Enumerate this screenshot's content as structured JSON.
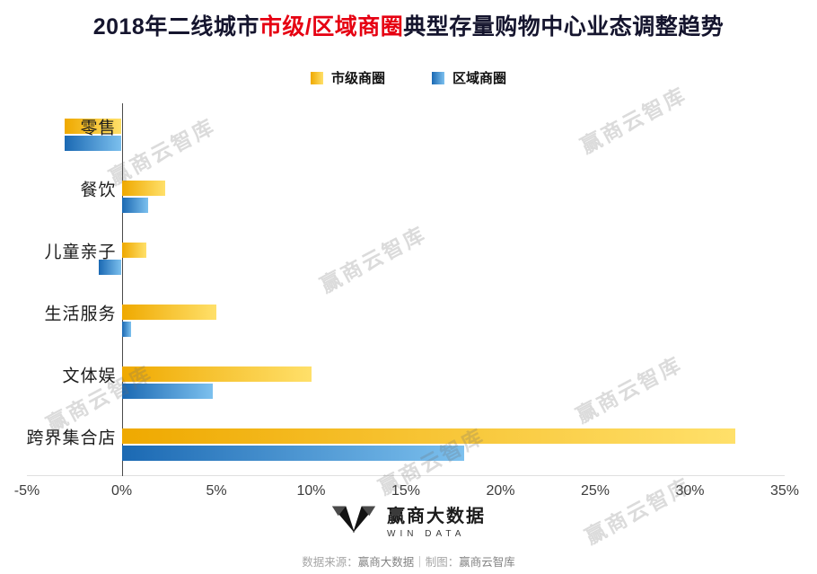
{
  "title": {
    "prefix": "2018年二线城市",
    "highlight": "市级/区域商圈",
    "suffix": "典型存量购物中心业态调整趋势"
  },
  "chart_data": {
    "type": "bar",
    "orientation": "horizontal",
    "title": "2018年二线城市市级/区域商圈典型存量购物中心业态调整趋势",
    "categories": [
      "零售",
      "餐饮",
      "儿童亲子",
      "生活服务",
      "文体娱",
      "跨界集合店"
    ],
    "series": [
      {
        "name": "市级商圈",
        "values": [
          -3,
          2.3,
          1.3,
          5,
          10,
          32.4
        ],
        "color_from": "#EFA900",
        "color_to": "#FFE06A"
      },
      {
        "name": "区域商圈",
        "values": [
          -3,
          1.4,
          -1.2,
          0.5,
          4.8,
          18.1
        ],
        "color_from": "#1B69B3",
        "color_to": "#7CC0EE"
      }
    ],
    "unit": "%",
    "xlim": [
      -5,
      35
    ],
    "x_ticks": [
      {
        "value": -5,
        "label": "-5%"
      },
      {
        "value": 0,
        "label": "0%"
      },
      {
        "value": 5,
        "label": "5%"
      },
      {
        "value": 10,
        "label": "10%"
      },
      {
        "value": 15,
        "label": "15%"
      },
      {
        "value": 20,
        "label": "20%"
      },
      {
        "value": 25,
        "label": "25%"
      },
      {
        "value": 30,
        "label": "30%"
      },
      {
        "value": 35,
        "label": "35%"
      }
    ],
    "grid": false,
    "legend_position": "top"
  },
  "watermark": {
    "text": "赢商云智库"
  },
  "footer": {
    "brand_name": "赢商大数据",
    "brand_sub": "WIN DATA",
    "source_label": "数据来源：",
    "source_value": "赢商大数据",
    "divider": "｜",
    "maker_label": "制图：",
    "maker_value": "赢商云智库"
  }
}
